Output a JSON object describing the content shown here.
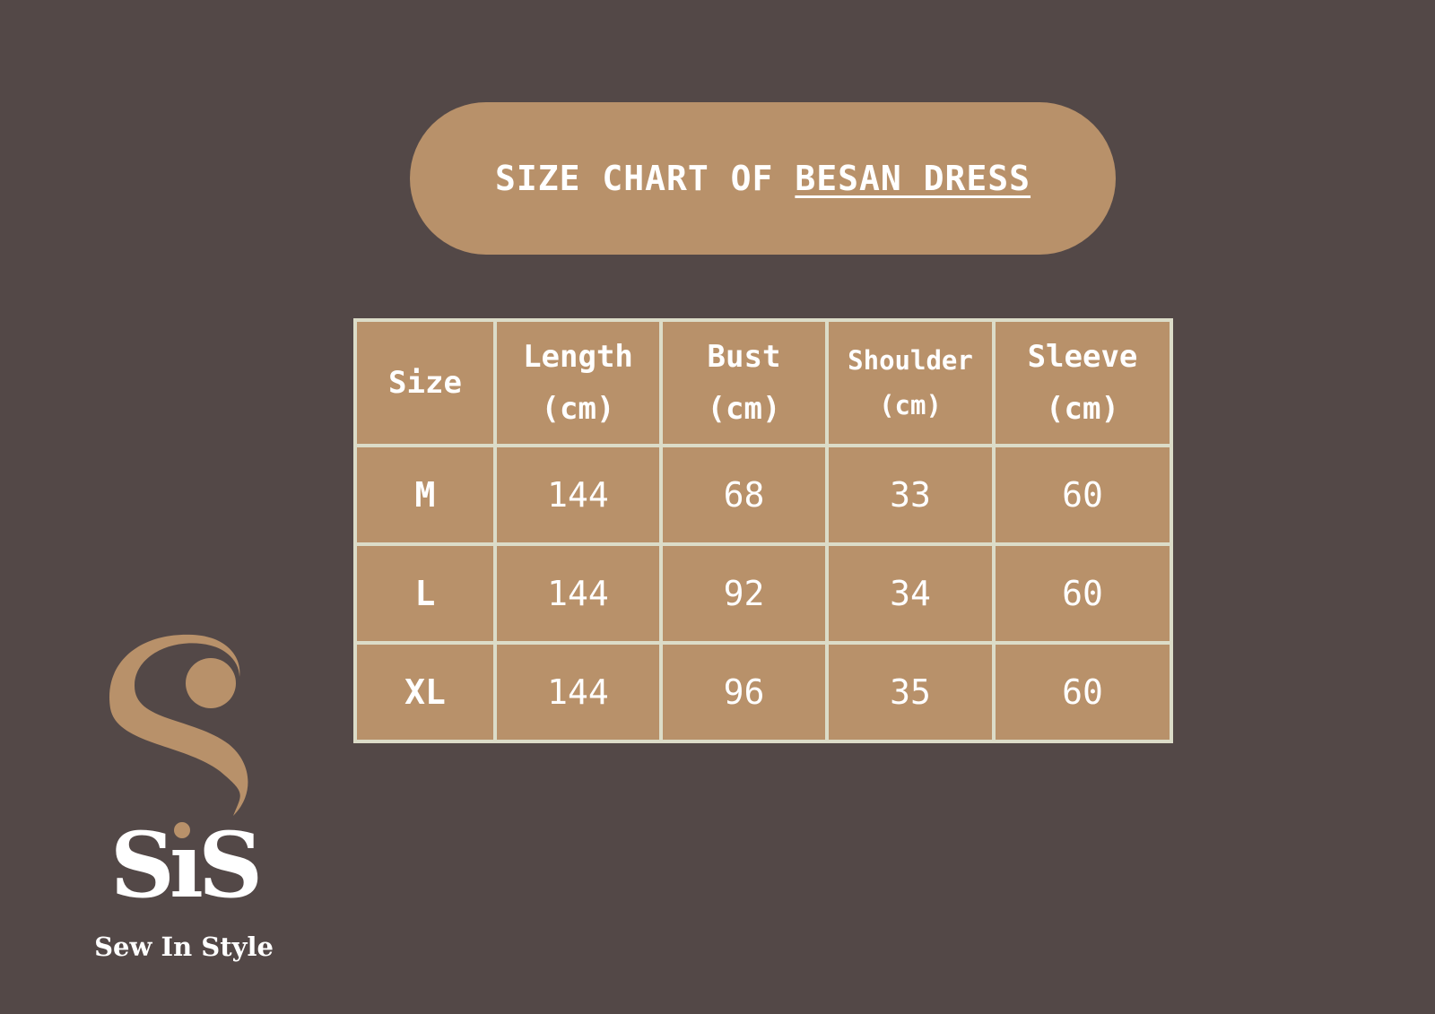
{
  "title": {
    "prefix": "SIZE CHART OF",
    "product": "BESAN DRESS"
  },
  "table": {
    "headers": [
      {
        "line1": "Size",
        "line2": ""
      },
      {
        "line1": "Length",
        "line2": "(cm)"
      },
      {
        "line1": "Bust",
        "line2": "(cm)"
      },
      {
        "line1": "Shoulder",
        "line2": "(cm)"
      },
      {
        "line1": "Sleeve",
        "line2": "(cm)"
      }
    ],
    "rows": [
      [
        "M",
        "144",
        "68",
        "33",
        "60"
      ],
      [
        "L",
        "144",
        "92",
        "34",
        "60"
      ],
      [
        "XL",
        "144",
        "96",
        "35",
        "60"
      ]
    ]
  },
  "logo": {
    "monogram": "SiS",
    "tagline": "Sew In Style"
  },
  "colors": {
    "background": "#534847",
    "accent": "#b8916a",
    "grid": "#dcdcc8"
  }
}
